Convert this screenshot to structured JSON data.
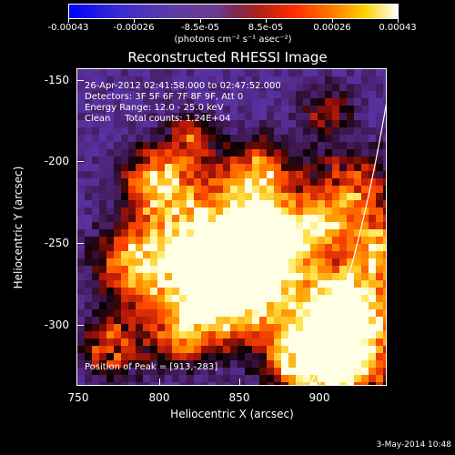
{
  "colorbar": {
    "labels": [
      "-0.00043",
      "-0.00026",
      "-8.5e-05",
      "8.5e-05",
      "0.00026",
      "0.00043"
    ],
    "units": "(photons cm⁻² s⁻¹ asec⁻²)"
  },
  "title": "Reconstructed RHESSI Image",
  "info": {
    "time": "26-Apr-2012 02:41:58.000 to 02:47:52.000",
    "detectors": "Detectors: 3F 5F 6F 7F 8F 9F, Att 0",
    "energy": "Energy Range: 12.0 - 25.0 keV",
    "clean": "Clean     Total counts: 1.24E+04",
    "peak": "Position of Peak = [913,-283]"
  },
  "axes": {
    "xlabel": "Heliocentric X (arcsec)",
    "ylabel": "Heliocentric Y (arcsec)",
    "xticks": [
      "750",
      "800",
      "850",
      "900"
    ],
    "yticks": [
      "-150",
      "-200",
      "-250",
      "-300"
    ]
  },
  "datestamp": "3-May-2014 10:48"
}
